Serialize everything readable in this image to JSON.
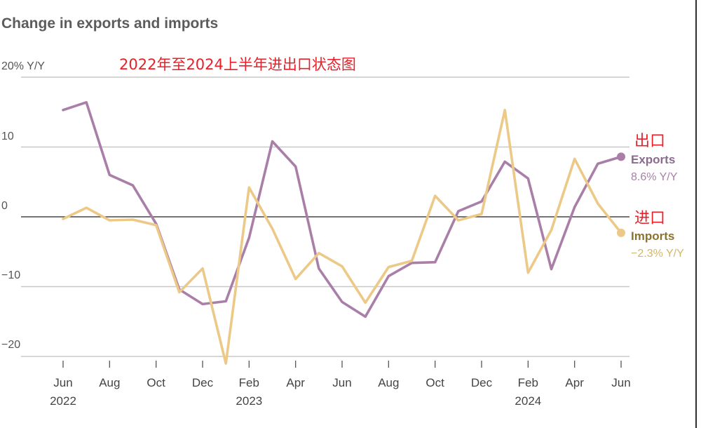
{
  "title": "Change in exports and imports",
  "annotation": "2022年至2024上半年进出口状态图",
  "y_axis": {
    "labels": [
      "20% Y/Y",
      "10",
      "0",
      "−10",
      "−20"
    ],
    "ticks": [
      20,
      10,
      0,
      -10,
      -20
    ]
  },
  "x_axis": {
    "month_labels": [
      "Jun",
      "Aug",
      "Oct",
      "Dec",
      "Feb",
      "Apr",
      "Jun",
      "Aug",
      "Oct",
      "Dec",
      "Feb",
      "Apr",
      "Jun"
    ],
    "month_index": [
      0,
      2,
      4,
      6,
      8,
      10,
      12,
      14,
      16,
      18,
      20,
      22,
      24
    ],
    "year_labels": [
      "2022",
      "2023",
      "2024"
    ],
    "year_index": [
      0,
      8,
      20
    ]
  },
  "legend": {
    "exports_cn": "出口",
    "exports_name": "Exports",
    "exports_value": "8.6% Y/Y",
    "imports_cn": "进口",
    "imports_name": "Imports",
    "imports_value": "−2.3% Y/Y"
  },
  "colors": {
    "exports": "#a97fa8",
    "imports": "#ecc987",
    "exports_text": "#8b6a8f",
    "imports_text": "#8a7430",
    "annotation": "#e8202a"
  },
  "chart_data": {
    "type": "line",
    "x": [
      "2022-06",
      "2022-07",
      "2022-08",
      "2022-09",
      "2022-10",
      "2022-11",
      "2022-12",
      "2023-01",
      "2023-02",
      "2023-03",
      "2023-04",
      "2023-05",
      "2023-06",
      "2023-07",
      "2023-08",
      "2023-09",
      "2023-10",
      "2023-11",
      "2023-12",
      "2024-01",
      "2024-02",
      "2024-03",
      "2024-04",
      "2024-05",
      "2024-06"
    ],
    "series": [
      {
        "name": "Exports",
        "values": [
          15.3,
          16.4,
          6.0,
          4.5,
          -1.0,
          -10.4,
          -12.5,
          -12.1,
          -3.0,
          10.8,
          7.2,
          -7.4,
          -12.2,
          -14.3,
          -8.5,
          -6.6,
          -6.5,
          0.8,
          2.2,
          7.9,
          5.5,
          -7.5,
          1.4,
          7.6,
          8.6
        ]
      },
      {
        "name": "Imports",
        "values": [
          -0.3,
          1.3,
          -0.5,
          -0.4,
          -1.2,
          -10.8,
          -7.4,
          -21.0,
          4.2,
          -1.7,
          -8.9,
          -5.2,
          -7.1,
          -12.3,
          -7.2,
          -6.3,
          3.0,
          -0.5,
          0.4,
          15.3,
          -8.0,
          -1.9,
          8.3,
          1.9,
          -2.3
        ]
      }
    ],
    "ylim": [
      -21,
      21
    ],
    "grid": true,
    "legend": "right"
  }
}
